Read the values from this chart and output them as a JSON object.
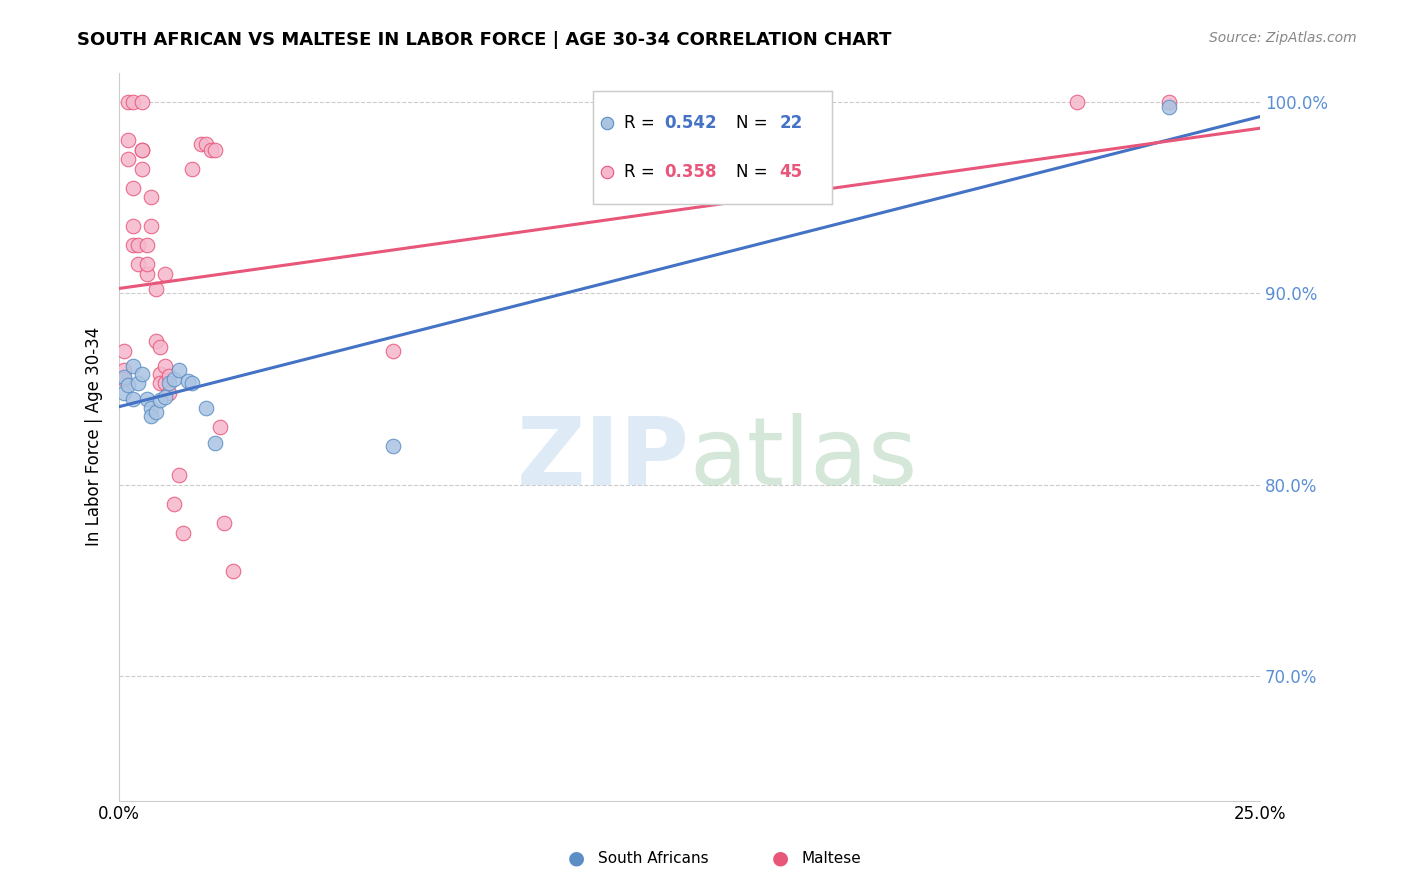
{
  "title": "SOUTH AFRICAN VS MALTESE IN LABOR FORCE | AGE 30-34 CORRELATION CHART",
  "source": "Source: ZipAtlas.com",
  "ylabel": "In Labor Force | Age 30-34",
  "xlim": [
    0.0,
    0.25
  ],
  "ylim": [
    0.635,
    1.015
  ],
  "ytick_vals": [
    0.7,
    0.8,
    0.9,
    1.0
  ],
  "ytick_labels": [
    "70.0%",
    "80.0%",
    "90.0%",
    "100.0%"
  ],
  "legend_r1": "0.542",
  "legend_n1": "22",
  "legend_r2": "0.358",
  "legend_n2": "45",
  "color_sa": "#aac4e2",
  "color_sa_edge": "#5b8ec4",
  "color_sa_line": "#4472c4",
  "color_mt": "#f5b8cc",
  "color_mt_edge": "#e8567a",
  "color_mt_line": "#e8567a",
  "color_ytick": "#5b8fd4",
  "sa_x": [
    0.001,
    0.001,
    0.002,
    0.003,
    0.003,
    0.004,
    0.005,
    0.006,
    0.007,
    0.007,
    0.008,
    0.009,
    0.01,
    0.011,
    0.012,
    0.013,
    0.015,
    0.016,
    0.019,
    0.021,
    0.06,
    0.23
  ],
  "sa_y": [
    0.856,
    0.848,
    0.852,
    0.862,
    0.845,
    0.853,
    0.858,
    0.845,
    0.84,
    0.836,
    0.838,
    0.844,
    0.846,
    0.853,
    0.855,
    0.86,
    0.854,
    0.853,
    0.84,
    0.822,
    0.82,
    0.997
  ],
  "mt_x": [
    0.001,
    0.001,
    0.001,
    0.002,
    0.002,
    0.002,
    0.003,
    0.003,
    0.003,
    0.003,
    0.004,
    0.004,
    0.005,
    0.005,
    0.005,
    0.005,
    0.006,
    0.006,
    0.006,
    0.007,
    0.007,
    0.008,
    0.008,
    0.009,
    0.009,
    0.009,
    0.01,
    0.01,
    0.01,
    0.011,
    0.011,
    0.012,
    0.013,
    0.014,
    0.016,
    0.018,
    0.019,
    0.02,
    0.021,
    0.022,
    0.023,
    0.025,
    0.06,
    0.21,
    0.23
  ],
  "mt_y": [
    0.86,
    0.87,
    0.855,
    0.97,
    0.98,
    1.0,
    0.925,
    0.935,
    0.955,
    1.0,
    0.925,
    0.915,
    0.975,
    0.965,
    0.975,
    1.0,
    0.91,
    0.915,
    0.925,
    0.95,
    0.935,
    0.875,
    0.902,
    0.858,
    0.853,
    0.872,
    0.862,
    0.853,
    0.91,
    0.857,
    0.848,
    0.79,
    0.805,
    0.775,
    0.965,
    0.978,
    0.978,
    0.975,
    0.975,
    0.83,
    0.78,
    0.755,
    0.87,
    1.0,
    1.0
  ],
  "sa_line": [
    0.0,
    0.25,
    0.837,
    0.997
  ],
  "mt_line": [
    0.0,
    0.25,
    0.858,
    1.0
  ]
}
